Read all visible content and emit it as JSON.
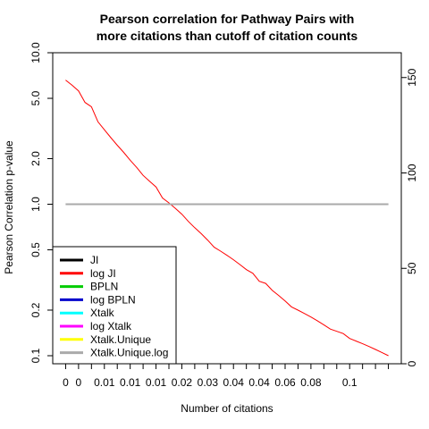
{
  "chart_data": {
    "type": "line",
    "title": [
      "Pearson correlation for Pathway Pairs with",
      "more citations than cutoff of citation counts"
    ],
    "xlabel": "Number of citations",
    "ylabel": "Pearson Correlation p-value",
    "x_tick_labels": [
      "0",
      "0",
      "0.01",
      "0.01",
      "0.01",
      "0.02",
      "0.03",
      "0.04",
      "0.04",
      "0.06",
      "0.08",
      "0.1"
    ],
    "y_left": {
      "scale": "log",
      "ticks": [
        0.1,
        0.2,
        0.5,
        1.0,
        2.0,
        5.0,
        10.0
      ],
      "tick_labels": [
        "0.1",
        "0.2",
        "0.5",
        "1.0",
        "2.0",
        "5.0",
        "10.0"
      ],
      "ylim": [
        0.0885,
        10.0
      ]
    },
    "y_right": {
      "scale": "linear",
      "ticks": [
        0,
        50,
        100,
        150
      ],
      "tick_labels": [
        "0",
        "50",
        "100",
        "150"
      ],
      "ylim": [
        0,
        163
      ]
    },
    "series": [
      {
        "name": "log JI",
        "color": "#ff0000",
        "axis": "left",
        "x": [
          0,
          0.5,
          1,
          1.5,
          2,
          2.5,
          3,
          3.5,
          4,
          4.5,
          5,
          5.5,
          6,
          6.5,
          7,
          7.5,
          8,
          8.5,
          9,
          9.5,
          10,
          10.5,
          11,
          11.5,
          12,
          12.5,
          13,
          13.5,
          14,
          14.5,
          15,
          15.5,
          16,
          16.5,
          17,
          17.5,
          18,
          18.5,
          19,
          19.5,
          20,
          20.5,
          21,
          21.5,
          22,
          22.5,
          23,
          23.5,
          24,
          24.5,
          25
        ],
        "values": [
          6.6,
          6.1,
          5.6,
          4.7,
          4.4,
          3.5,
          3.1,
          2.75,
          2.45,
          2.2,
          1.95,
          1.75,
          1.55,
          1.42,
          1.3,
          1.1,
          1.02,
          0.94,
          0.86,
          0.77,
          0.7,
          0.64,
          0.58,
          0.52,
          0.49,
          0.46,
          0.43,
          0.4,
          0.37,
          0.35,
          0.31,
          0.3,
          0.27,
          0.25,
          0.23,
          0.21,
          0.2,
          0.19,
          0.18,
          0.17,
          0.16,
          0.15,
          0.145,
          0.14,
          0.13,
          0.125,
          0.12,
          0.115,
          0.11,
          0.105,
          0.1
        ]
      },
      {
        "name": "Xtalk.Unique.log",
        "color": "#aaaaaa",
        "axis": "left",
        "x": [
          0,
          25
        ],
        "values": [
          1.0,
          1.0
        ]
      }
    ],
    "legend": {
      "position": "bottom-left",
      "entries": [
        {
          "label": "JI",
          "color": "#000000"
        },
        {
          "label": "log JI",
          "color": "#ff0000"
        },
        {
          "label": "BPLN",
          "color": "#00cc00"
        },
        {
          "label": "log BPLN",
          "color": "#0000cc"
        },
        {
          "label": "Xtalk",
          "color": "#00ffff"
        },
        {
          "label": "log Xtalk",
          "color": "#ff00ff"
        },
        {
          "label": "Xtalk.Unique",
          "color": "#ffff00"
        },
        {
          "label": "Xtalk.Unique.log",
          "color": "#aaaaaa"
        }
      ]
    }
  }
}
